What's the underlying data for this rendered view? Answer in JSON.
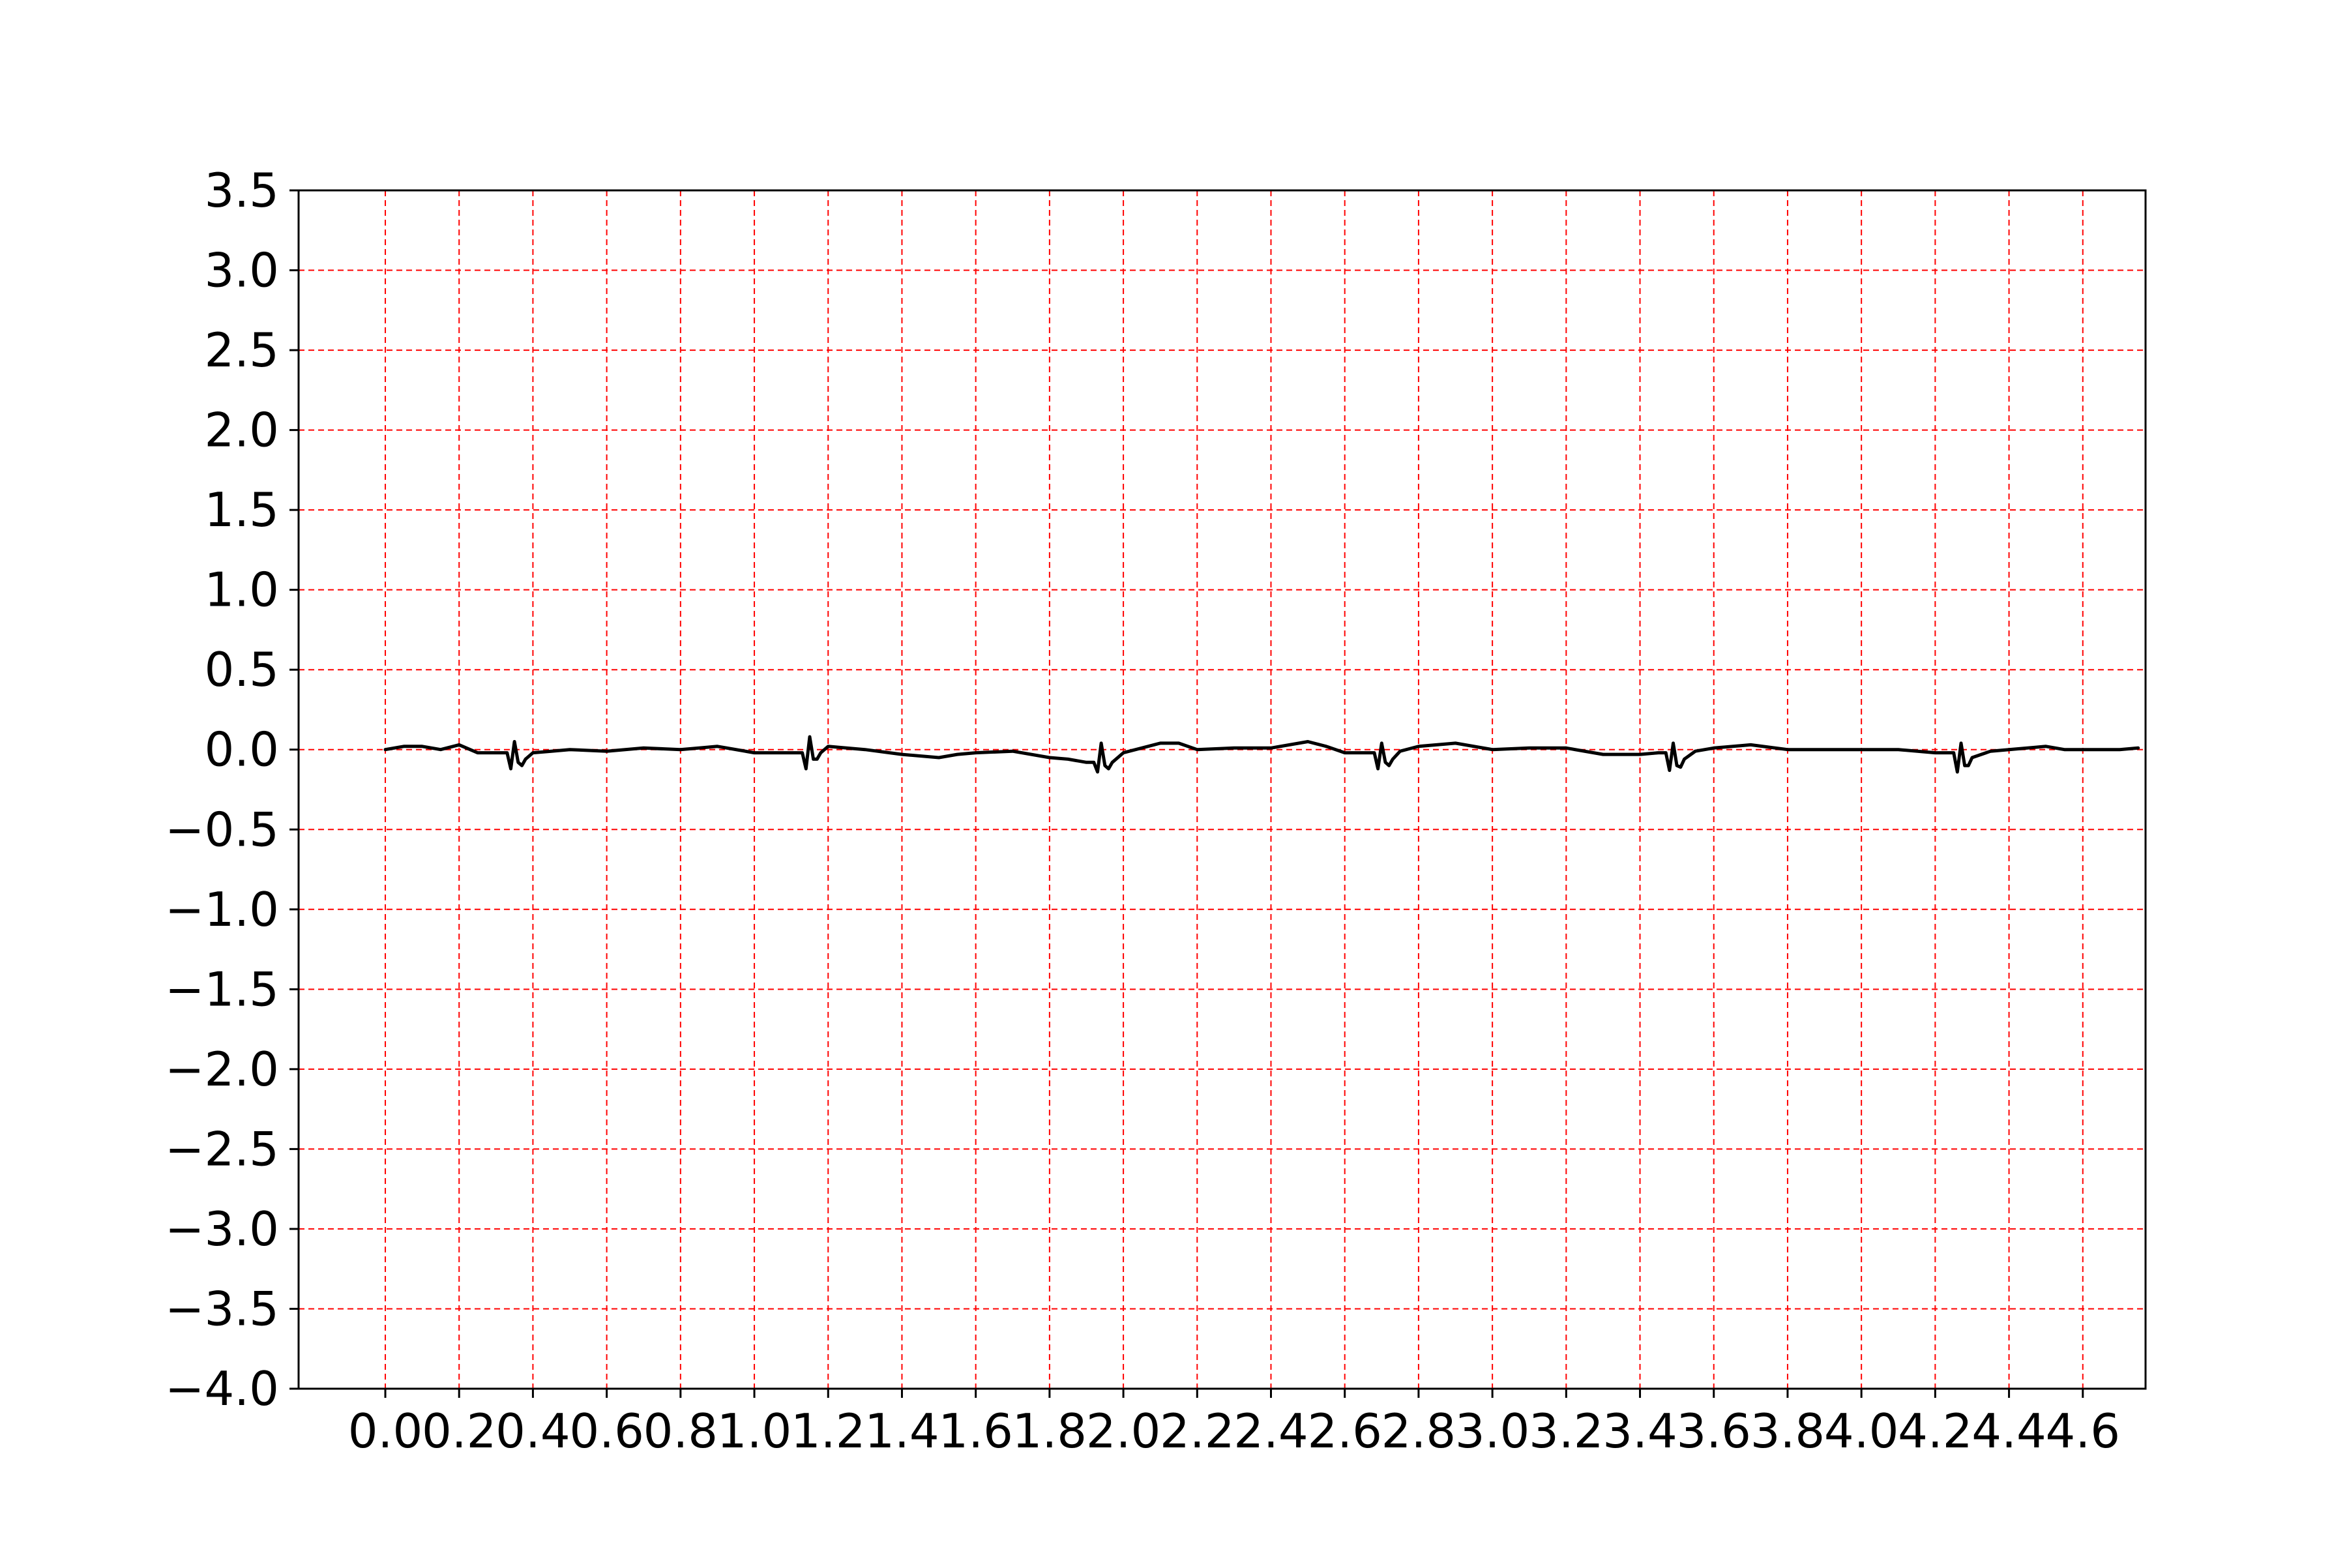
{
  "chart_data": {
    "type": "line",
    "title": "",
    "xlabel": "",
    "ylabel": "",
    "xlim": [
      -0.235,
      4.77
    ],
    "ylim": [
      -4.0,
      3.5
    ],
    "x_ticks": [
      "0.0",
      "0.2",
      "0.4",
      "0.6",
      "0.8",
      "1.0",
      "1.2",
      "1.4",
      "1.6",
      "1.8",
      "2.0",
      "2.2",
      "2.4",
      "2.6",
      "2.8",
      "3.0",
      "3.2",
      "3.4",
      "3.6",
      "3.8",
      "4.0",
      "4.2",
      "4.4",
      "4.6"
    ],
    "y_ticks": [
      "3.5",
      "3.0",
      "2.5",
      "2.0",
      "1.5",
      "1.0",
      "0.5",
      "0.0",
      "−0.5",
      "−1.0",
      "−1.5",
      "−2.0",
      "−2.5",
      "−3.0",
      "−3.5",
      "−4.0"
    ],
    "grid": true,
    "grid_style": "dashed",
    "grid_color": "#ff0000",
    "line_color": "#000000",
    "series": [
      {
        "x": [
          0.0,
          0.05,
          0.1,
          0.15,
          0.2,
          0.25,
          0.3,
          0.33,
          0.34,
          0.35,
          0.36,
          0.37,
          0.38,
          0.4,
          0.45,
          0.5,
          0.6,
          0.7,
          0.8,
          0.9,
          1.0,
          1.05,
          1.1,
          1.13,
          1.14,
          1.15,
          1.16,
          1.17,
          1.18,
          1.2,
          1.3,
          1.4,
          1.5,
          1.55,
          1.6,
          1.7,
          1.8,
          1.85,
          1.9,
          1.92,
          1.93,
          1.94,
          1.95,
          1.96,
          1.97,
          2.0,
          2.1,
          2.15,
          2.2,
          2.3,
          2.4,
          2.5,
          2.55,
          2.6,
          2.68,
          2.69,
          2.7,
          2.71,
          2.72,
          2.73,
          2.75,
          2.8,
          2.9,
          3.0,
          3.1,
          3.2,
          3.3,
          3.4,
          3.45,
          3.47,
          3.48,
          3.49,
          3.5,
          3.51,
          3.52,
          3.55,
          3.6,
          3.7,
          3.8,
          3.9,
          4.0,
          4.1,
          4.2,
          4.25,
          4.26,
          4.27,
          4.28,
          4.29,
          4.3,
          4.35,
          4.4,
          4.5,
          4.55,
          4.6,
          4.7,
          4.75
        ],
        "y": [
          0.0,
          0.02,
          0.02,
          0.0,
          0.03,
          -0.02,
          -0.02,
          -0.02,
          -0.12,
          0.05,
          -0.08,
          -0.1,
          -0.06,
          -0.02,
          -0.01,
          0.0,
          -0.01,
          0.01,
          0.0,
          0.02,
          -0.02,
          -0.02,
          -0.02,
          -0.02,
          -0.12,
          0.08,
          -0.06,
          -0.06,
          -0.02,
          0.02,
          0.0,
          -0.03,
          -0.05,
          -0.03,
          -0.02,
          -0.01,
          -0.05,
          -0.06,
          -0.08,
          -0.08,
          -0.14,
          0.04,
          -0.1,
          -0.12,
          -0.08,
          -0.02,
          0.04,
          0.04,
          0.0,
          0.01,
          0.01,
          0.05,
          0.02,
          -0.02,
          -0.02,
          -0.12,
          0.04,
          -0.08,
          -0.1,
          -0.06,
          -0.01,
          0.02,
          0.04,
          0.0,
          0.01,
          0.01,
          -0.03,
          -0.03,
          -0.02,
          -0.02,
          -0.13,
          0.04,
          -0.1,
          -0.11,
          -0.06,
          -0.01,
          0.01,
          0.03,
          0.0,
          0.0,
          0.0,
          0.0,
          -0.02,
          -0.02,
          -0.14,
          0.04,
          -0.1,
          -0.1,
          -0.05,
          -0.01,
          0.0,
          0.02,
          0.0,
          0.0,
          0.0,
          0.01
        ]
      }
    ]
  }
}
